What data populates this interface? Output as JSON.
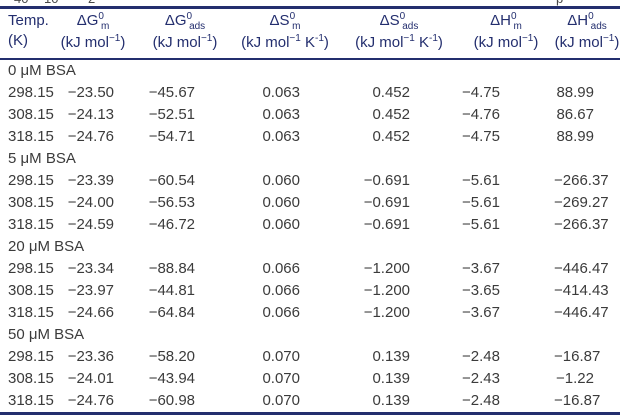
{
  "page": {
    "bg_color": "#ffffff",
    "rule_color": "#232e6e",
    "header_text_color": "#232e6e",
    "body_text_color": "#3b3b3b",
    "cutoff_fragments": {
      "f1": "-",
      "f2": "40",
      "f3": "10",
      "f4": "-",
      "f5": "2",
      "f6": "p"
    }
  },
  "table": {
    "columns": [
      {
        "id": "temp",
        "line1": [
          {
            "t": "Temp."
          }
        ],
        "line2": [
          {
            "t": "(K)"
          }
        ]
      },
      {
        "id": "dG-m",
        "line1": [
          {
            "t": "ΔG"
          },
          {
            "t": "0",
            "s": "sup"
          },
          {
            "t": "m",
            "s": "subafter"
          }
        ],
        "line2": [
          {
            "t": "(kJ mol"
          },
          {
            "t": "−1",
            "s": "sup"
          },
          {
            "t": ")"
          }
        ]
      },
      {
        "id": "dG-ads",
        "line1": [
          {
            "t": "ΔG"
          },
          {
            "t": "0",
            "s": "sup"
          },
          {
            "t": "ads",
            "s": "subafter"
          }
        ],
        "line2": [
          {
            "t": "(kJ mol"
          },
          {
            "t": "−1",
            "s": "sup"
          },
          {
            "t": ")"
          }
        ]
      },
      {
        "id": "dS-m",
        "line1": [
          {
            "t": "ΔS"
          },
          {
            "t": "0",
            "s": "sup"
          },
          {
            "t": "m",
            "s": "subafter"
          }
        ],
        "line2": [
          {
            "t": "(kJ mol"
          },
          {
            "t": "−1",
            "s": "sup"
          },
          {
            "t": " K"
          },
          {
            "t": "-1",
            "s": "sup"
          },
          {
            "t": ")"
          }
        ]
      },
      {
        "id": "dS-ads",
        "line1": [
          {
            "t": "ΔS"
          },
          {
            "t": "0",
            "s": "sup"
          },
          {
            "t": "ads",
            "s": "subafter"
          }
        ],
        "line2": [
          {
            "t": "(kJ mol"
          },
          {
            "t": "−1",
            "s": "sup"
          },
          {
            "t": " K"
          },
          {
            "t": "-1",
            "s": "sup"
          },
          {
            "t": ")"
          }
        ]
      },
      {
        "id": "dH-m",
        "line1": [
          {
            "t": "ΔH"
          },
          {
            "t": "0",
            "s": "sup"
          },
          {
            "t": "m",
            "s": "subafter"
          }
        ],
        "line2": [
          {
            "t": "(kJ mol"
          },
          {
            "t": "−1",
            "s": "sup"
          },
          {
            "t": ")"
          }
        ]
      },
      {
        "id": "dH-ads",
        "line1": [
          {
            "t": "ΔH"
          },
          {
            "t": "0",
            "s": "sup"
          },
          {
            "t": "ads",
            "s": "subafter"
          }
        ],
        "line2": [
          {
            "t": "(kJ mol"
          },
          {
            "t": "−1",
            "s": "sup"
          },
          {
            "t": ")"
          }
        ]
      }
    ],
    "sections": [
      {
        "label": "0 μM BSA",
        "rows": [
          [
            "298.15",
            "−23.50",
            "−45.67",
            "0.063",
            "0.452",
            "−4.75",
            "88.99"
          ],
          [
            "308.15",
            "−24.13",
            "−52.51",
            "0.063",
            "0.452",
            "−4.76",
            "86.67"
          ],
          [
            "318.15",
            "−24.76",
            "−54.71",
            "0.063",
            "0.452",
            "−4.75",
            "88.99"
          ]
        ]
      },
      {
        "label": "5 μM BSA",
        "rows": [
          [
            "298.15",
            "−23.39",
            "−60.54",
            "0.060",
            "−0.691",
            "−5.61",
            "−266.37"
          ],
          [
            "308.15",
            "−24.00",
            "−56.53",
            "0.060",
            "−0.691",
            "−5.61",
            "−269.27"
          ],
          [
            "318.15",
            "−24.59",
            "−46.72",
            "0.060",
            "−0.691",
            "−5.61",
            "−266.37"
          ]
        ]
      },
      {
        "label": "20 μM BSA",
        "rows": [
          [
            "298.15",
            "−23.34",
            "−88.84",
            "0.066",
            "−1.200",
            "−3.67",
            "−446.47"
          ],
          [
            "308.15",
            "−23.97",
            "−44.81",
            "0.066",
            "−1.200",
            "−3.65",
            "−414.43"
          ],
          [
            "318.15",
            "−24.66",
            "−64.84",
            "0.066",
            "−1.200",
            "−3.67",
            "−446.47"
          ]
        ]
      },
      {
        "label": "50 μM BSA",
        "rows": [
          [
            "298.15",
            "−23.36",
            "−58.20",
            "0.070",
            "0.139",
            "−2.48",
            "−16.87"
          ],
          [
            "308.15",
            "−24.01",
            "−43.94",
            "0.070",
            "0.139",
            "−2.43",
            "−1.22"
          ],
          [
            "318.15",
            "−24.76",
            "−60.98",
            "0.070",
            "0.139",
            "−2.48",
            "−16.87"
          ]
        ]
      }
    ]
  }
}
